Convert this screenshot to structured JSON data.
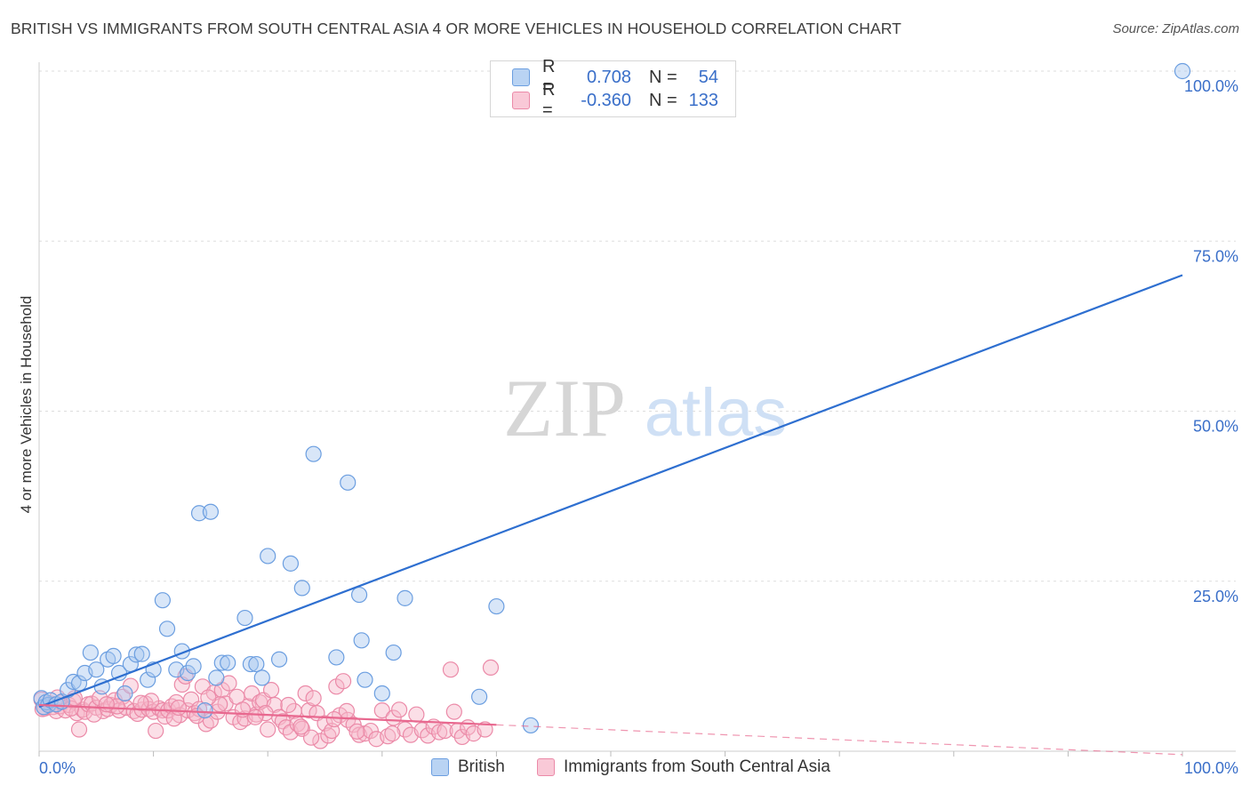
{
  "title": "BRITISH VS IMMIGRANTS FROM SOUTH CENTRAL ASIA 4 OR MORE VEHICLES IN HOUSEHOLD CORRELATION CHART",
  "source": "Source: ZipAtlas.com",
  "watermark": {
    "zip": "ZIP",
    "atlas": "atlas"
  },
  "legend": {
    "rows": [
      {
        "r_label": "R =",
        "r_value": "0.708",
        "n_label": "N =",
        "n_value": "54"
      },
      {
        "r_label": "R =",
        "r_value": "-0.360",
        "n_label": "N =",
        "n_value": "133"
      }
    ]
  },
  "bottom_legend": [
    "British",
    "Immigrants from South Central Asia"
  ],
  "colors": {
    "british_fill": "#a9c8f0",
    "british_stroke": "#6b9ee0",
    "british_line": "#2e6fd0",
    "immig_fill": "#f6b7c9",
    "immig_stroke": "#eb8aa8",
    "immig_line": "#e8688f",
    "axis_label": "#3a6fc9",
    "grid": "#dddddd"
  },
  "chart_data": {
    "type": "scatter",
    "xlabel": "",
    "ylabel": "4 or more Vehicles in Household",
    "xlim": [
      0,
      100
    ],
    "ylim": [
      0,
      100
    ],
    "x_ticks": [
      "0.0%",
      "100.0%"
    ],
    "y_ticks": [
      "25.0%",
      "50.0%",
      "75.0%",
      "100.0%"
    ],
    "y_tick_values": [
      25,
      50,
      75,
      100
    ],
    "grid": true,
    "series": [
      {
        "name": "British",
        "r": 0.708,
        "n": 54,
        "trend": {
          "x": [
            0,
            100
          ],
          "y": [
            6.5,
            70.0
          ],
          "dashed_from": null
        },
        "points": [
          [
            0.2,
            7.8
          ],
          [
            0.4,
            6.5
          ],
          [
            0.6,
            7.2
          ],
          [
            0.8,
            6.8
          ],
          [
            1.0,
            7.5
          ],
          [
            1.5,
            6.9
          ],
          [
            2.0,
            7.3
          ],
          [
            2.5,
            9.0
          ],
          [
            3.0,
            10.2
          ],
          [
            3.5,
            10.0
          ],
          [
            4.0,
            11.5
          ],
          [
            4.5,
            14.5
          ],
          [
            5.0,
            12.0
          ],
          [
            5.5,
            9.5
          ],
          [
            6.0,
            13.5
          ],
          [
            6.5,
            14.0
          ],
          [
            7.0,
            11.5
          ],
          [
            7.5,
            8.5
          ],
          [
            8.0,
            12.8
          ],
          [
            8.5,
            14.2
          ],
          [
            9.0,
            14.3
          ],
          [
            9.5,
            10.5
          ],
          [
            10.0,
            12.0
          ],
          [
            10.8,
            22.2
          ],
          [
            11.2,
            18.0
          ],
          [
            12.0,
            12.0
          ],
          [
            12.5,
            14.7
          ],
          [
            13.0,
            11.5
          ],
          [
            13.5,
            12.5
          ],
          [
            14.0,
            35.0
          ],
          [
            14.5,
            6.0
          ],
          [
            15.0,
            35.2
          ],
          [
            15.5,
            10.8
          ],
          [
            16.0,
            13.0
          ],
          [
            16.5,
            13.0
          ],
          [
            18.0,
            19.6
          ],
          [
            18.5,
            12.8
          ],
          [
            19.0,
            12.8
          ],
          [
            19.5,
            10.8
          ],
          [
            20.0,
            28.7
          ],
          [
            21.0,
            13.5
          ],
          [
            22.0,
            27.6
          ],
          [
            23.0,
            24.0
          ],
          [
            24.0,
            43.7
          ],
          [
            26.0,
            13.8
          ],
          [
            27.0,
            39.5
          ],
          [
            28.0,
            23.0
          ],
          [
            28.2,
            16.3
          ],
          [
            28.5,
            10.5
          ],
          [
            30.0,
            8.5
          ],
          [
            31.0,
            14.5
          ],
          [
            32.0,
            22.5
          ],
          [
            38.5,
            8.0
          ],
          [
            40.0,
            21.3
          ],
          [
            43.0,
            3.8
          ],
          [
            100.0,
            100.0
          ]
        ]
      },
      {
        "name": "Immigrants from South Central Asia",
        "r": -0.36,
        "n": 133,
        "trend": {
          "x": [
            0,
            100
          ],
          "y": [
            6.8,
            -0.5
          ],
          "dashed_from": 40
        },
        "points": [
          [
            0.2,
            7.6
          ],
          [
            0.5,
            6.3
          ],
          [
            0.8,
            6.9
          ],
          [
            1.0,
            7.0
          ],
          [
            1.2,
            6.5
          ],
          [
            1.5,
            5.9
          ],
          [
            1.8,
            6.6
          ],
          [
            2.0,
            7.2
          ],
          [
            2.3,
            6.0
          ],
          [
            2.6,
            6.8
          ],
          [
            3.0,
            7.4
          ],
          [
            3.3,
            5.6
          ],
          [
            3.5,
            3.2
          ],
          [
            3.8,
            6.1
          ],
          [
            4.0,
            5.8
          ],
          [
            4.3,
            6.9
          ],
          [
            4.6,
            7.0
          ],
          [
            5.0,
            6.4
          ],
          [
            5.3,
            7.8
          ],
          [
            5.6,
            5.9
          ],
          [
            6.0,
            6.2
          ],
          [
            6.3,
            6.8
          ],
          [
            6.6,
            7.5
          ],
          [
            7.0,
            6.0
          ],
          [
            7.3,
            8.0
          ],
          [
            7.6,
            6.4
          ],
          [
            8.0,
            9.6
          ],
          [
            8.3,
            5.9
          ],
          [
            8.6,
            5.5
          ],
          [
            9.0,
            6.1
          ],
          [
            9.3,
            7.0
          ],
          [
            9.6,
            6.2
          ],
          [
            10.0,
            5.8
          ],
          [
            10.2,
            3.0
          ],
          [
            10.5,
            6.3
          ],
          [
            10.8,
            6.0
          ],
          [
            11.0,
            5.1
          ],
          [
            11.3,
            6.0
          ],
          [
            11.6,
            6.6
          ],
          [
            12.0,
            7.2
          ],
          [
            12.3,
            5.3
          ],
          [
            12.5,
            9.8
          ],
          [
            12.8,
            11.0
          ],
          [
            13.0,
            6.0
          ],
          [
            13.3,
            7.6
          ],
          [
            13.6,
            5.6
          ],
          [
            14.0,
            6.2
          ],
          [
            14.3,
            9.5
          ],
          [
            14.6,
            4.0
          ],
          [
            15.0,
            4.5
          ],
          [
            15.3,
            8.6
          ],
          [
            15.6,
            5.8
          ],
          [
            16.0,
            9.0
          ],
          [
            16.3,
            7.0
          ],
          [
            16.6,
            10.0
          ],
          [
            17.0,
            5.0
          ],
          [
            17.3,
            8.0
          ],
          [
            17.6,
            4.3
          ],
          [
            18.0,
            4.8
          ],
          [
            18.3,
            6.6
          ],
          [
            18.6,
            8.5
          ],
          [
            19.0,
            5.4
          ],
          [
            19.3,
            7.2
          ],
          [
            19.6,
            7.5
          ],
          [
            20.0,
            3.2
          ],
          [
            20.3,
            9.0
          ],
          [
            20.6,
            6.8
          ],
          [
            21.0,
            5.0
          ],
          [
            21.3,
            4.4
          ],
          [
            21.6,
            3.5
          ],
          [
            22.0,
            2.8
          ],
          [
            22.3,
            5.9
          ],
          [
            22.6,
            4.0
          ],
          [
            23.0,
            3.3
          ],
          [
            23.3,
            8.5
          ],
          [
            23.6,
            6.0
          ],
          [
            24.0,
            7.8
          ],
          [
            24.3,
            5.6
          ],
          [
            24.6,
            1.5
          ],
          [
            25.0,
            4.1
          ],
          [
            25.3,
            2.3
          ],
          [
            25.6,
            3.0
          ],
          [
            26.0,
            9.5
          ],
          [
            26.3,
            5.3
          ],
          [
            26.6,
            10.3
          ],
          [
            27.0,
            4.6
          ],
          [
            27.5,
            3.9
          ],
          [
            28.0,
            2.4
          ],
          [
            28.5,
            2.6
          ],
          [
            29.0,
            3.0
          ],
          [
            29.5,
            1.8
          ],
          [
            30.0,
            6.0
          ],
          [
            30.5,
            2.2
          ],
          [
            31.0,
            4.9
          ],
          [
            31.5,
            6.1
          ],
          [
            32.0,
            3.2
          ],
          [
            32.5,
            2.4
          ],
          [
            33.0,
            5.4
          ],
          [
            33.5,
            3.1
          ],
          [
            34.0,
            2.3
          ],
          [
            34.5,
            3.6
          ],
          [
            35.0,
            2.8
          ],
          [
            35.5,
            3.0
          ],
          [
            36.0,
            12.0
          ],
          [
            36.3,
            5.8
          ],
          [
            36.6,
            3.0
          ],
          [
            37.0,
            2.1
          ],
          [
            37.5,
            3.5
          ],
          [
            38.0,
            2.6
          ],
          [
            39.0,
            3.2
          ],
          [
            39.5,
            12.3
          ],
          [
            6.8,
            6.6
          ],
          [
            9.8,
            7.4
          ],
          [
            11.8,
            4.8
          ],
          [
            13.8,
            5.2
          ],
          [
            15.8,
            6.9
          ],
          [
            17.8,
            6.1
          ],
          [
            19.8,
            5.6
          ],
          [
            21.8,
            6.8
          ],
          [
            23.8,
            2.0
          ],
          [
            25.8,
            4.7
          ],
          [
            27.8,
            2.9
          ],
          [
            2.8,
            6.3
          ],
          [
            4.8,
            5.4
          ],
          [
            1.6,
            7.9
          ],
          [
            0.3,
            6.2
          ],
          [
            3.1,
            7.8
          ],
          [
            5.9,
            6.9
          ],
          [
            8.9,
            7.1
          ],
          [
            12.2,
            6.4
          ],
          [
            14.8,
            7.9
          ],
          [
            18.9,
            5.0
          ],
          [
            22.9,
            3.6
          ],
          [
            26.9,
            5.9
          ],
          [
            30.9,
            2.6
          ]
        ]
      }
    ]
  }
}
